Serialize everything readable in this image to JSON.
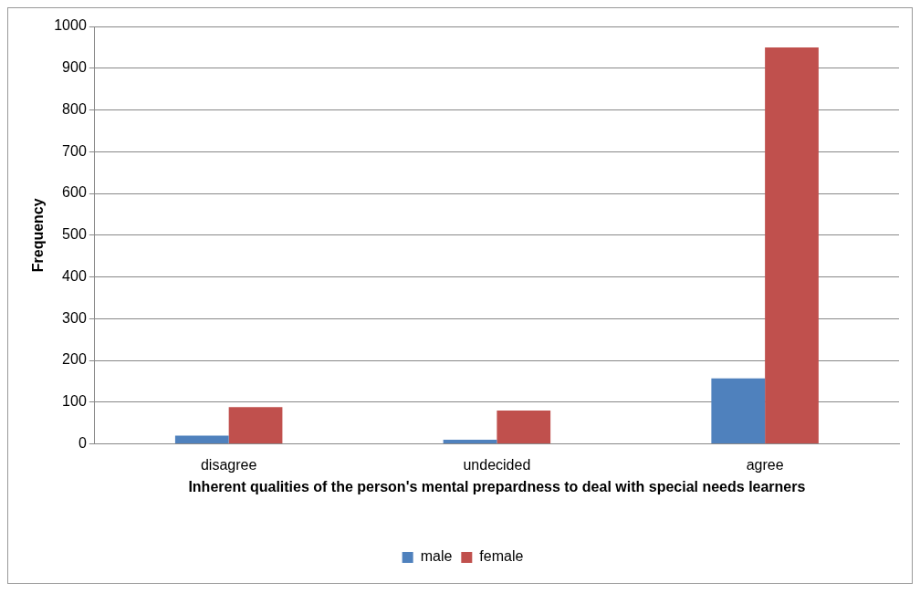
{
  "chart_data": {
    "type": "bar",
    "xlabel": "Inherent qualities of the person's mental prepardness to deal with special needs learners",
    "ylabel": "Frequency",
    "categories": [
      "disagree",
      "undecided",
      "agree"
    ],
    "series": [
      {
        "name": "male",
        "color": "#4f81bd",
        "values": [
          20,
          10,
          157
        ]
      },
      {
        "name": "female",
        "color": "#c0504d",
        "values": [
          88,
          80,
          950
        ]
      }
    ],
    "ylim": [
      0,
      1000
    ],
    "yticks": [
      0,
      100,
      200,
      300,
      400,
      500,
      600,
      700,
      800,
      900,
      1000
    ],
    "grid": "y",
    "legend": "bottom"
  }
}
